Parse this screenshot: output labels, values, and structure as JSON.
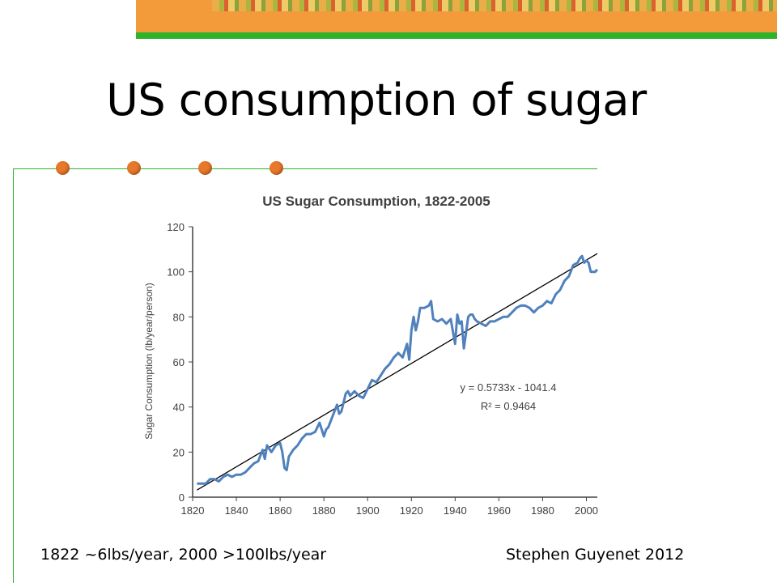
{
  "slide": {
    "title": "US consumption of sugar",
    "footer_left": "1822 ~6lbs/year,  2000 >100lbs/year",
    "footer_right": "Stephen Guyenet 2012"
  },
  "colors": {
    "accent_orange": "#f39a3a",
    "accent_green": "#2fb32a",
    "bullet": "#e8782a",
    "series": "#4f81bd",
    "trend": "#000000"
  },
  "chart_data": {
    "type": "line",
    "title": "US Sugar Consumption, 1822-2005",
    "xlabel": "",
    "ylabel": "Sugar Consumption (lb/year/person)",
    "xlim": [
      1820,
      2005
    ],
    "ylim": [
      0,
      120
    ],
    "xticks": [
      1820,
      1840,
      1860,
      1880,
      1900,
      1920,
      1940,
      1960,
      1980,
      2000
    ],
    "yticks": [
      0,
      20,
      40,
      60,
      80,
      100,
      120
    ],
    "grid": false,
    "series": [
      {
        "x": [
          1822,
          1824,
          1826,
          1828,
          1830,
          1832,
          1834,
          1836,
          1838,
          1840,
          1842,
          1844,
          1846,
          1848,
          1850,
          1852,
          1853,
          1854,
          1856,
          1858,
          1860,
          1861,
          1862,
          1863,
          1864,
          1866,
          1868,
          1870,
          1872,
          1874,
          1876,
          1878,
          1880,
          1881,
          1882,
          1884,
          1886,
          1887,
          1888,
          1890,
          1891,
          1892,
          1894,
          1896,
          1898,
          1900,
          1902,
          1904,
          1906,
          1908,
          1910,
          1912,
          1914,
          1916,
          1918,
          1919,
          1920,
          1921,
          1922,
          1923,
          1924,
          1926,
          1928,
          1929,
          1930,
          1932,
          1934,
          1936,
          1938,
          1940,
          1941,
          1942,
          1943,
          1944,
          1945,
          1946,
          1947,
          1948,
          1949,
          1950,
          1952,
          1954,
          1956,
          1958,
          1960,
          1962,
          1964,
          1966,
          1968,
          1970,
          1972,
          1974,
          1976,
          1978,
          1980,
          1982,
          1984,
          1986,
          1988,
          1990,
          1992,
          1994,
          1996,
          1997,
          1998,
          1999,
          2000,
          2001,
          2002,
          2003,
          2004,
          2005
        ],
        "values": [
          6,
          6,
          6,
          8,
          8,
          7,
          9,
          10,
          9,
          10,
          10,
          11,
          13,
          15,
          16,
          21,
          17,
          23,
          20,
          23,
          24,
          20,
          13,
          12,
          18,
          21,
          23,
          26,
          28,
          28,
          29,
          33,
          27,
          30,
          31,
          36,
          41,
          37,
          38,
          46,
          47,
          45,
          47,
          45,
          44,
          48,
          52,
          51,
          54,
          57,
          59,
          62,
          64,
          62,
          68,
          61,
          74,
          80,
          74,
          78,
          84,
          84,
          85,
          87,
          79,
          78,
          79,
          77,
          79,
          68,
          81,
          77,
          78,
          66,
          73,
          80,
          81,
          81,
          79,
          78,
          77,
          76,
          78,
          78,
          79,
          80,
          80,
          82,
          84,
          85,
          85,
          84,
          82,
          84,
          85,
          87,
          86,
          90,
          92,
          96,
          98,
          103,
          104,
          106,
          107,
          104,
          105,
          104,
          100,
          100,
          100,
          101
        ]
      }
    ],
    "trendline": {
      "slope": 0.5733,
      "intercept": -1041.4,
      "x_range": [
        1822,
        2005
      ]
    },
    "annotations": [
      "y = 0.5733x - 1041.4",
      "R² = 0.9464"
    ]
  }
}
